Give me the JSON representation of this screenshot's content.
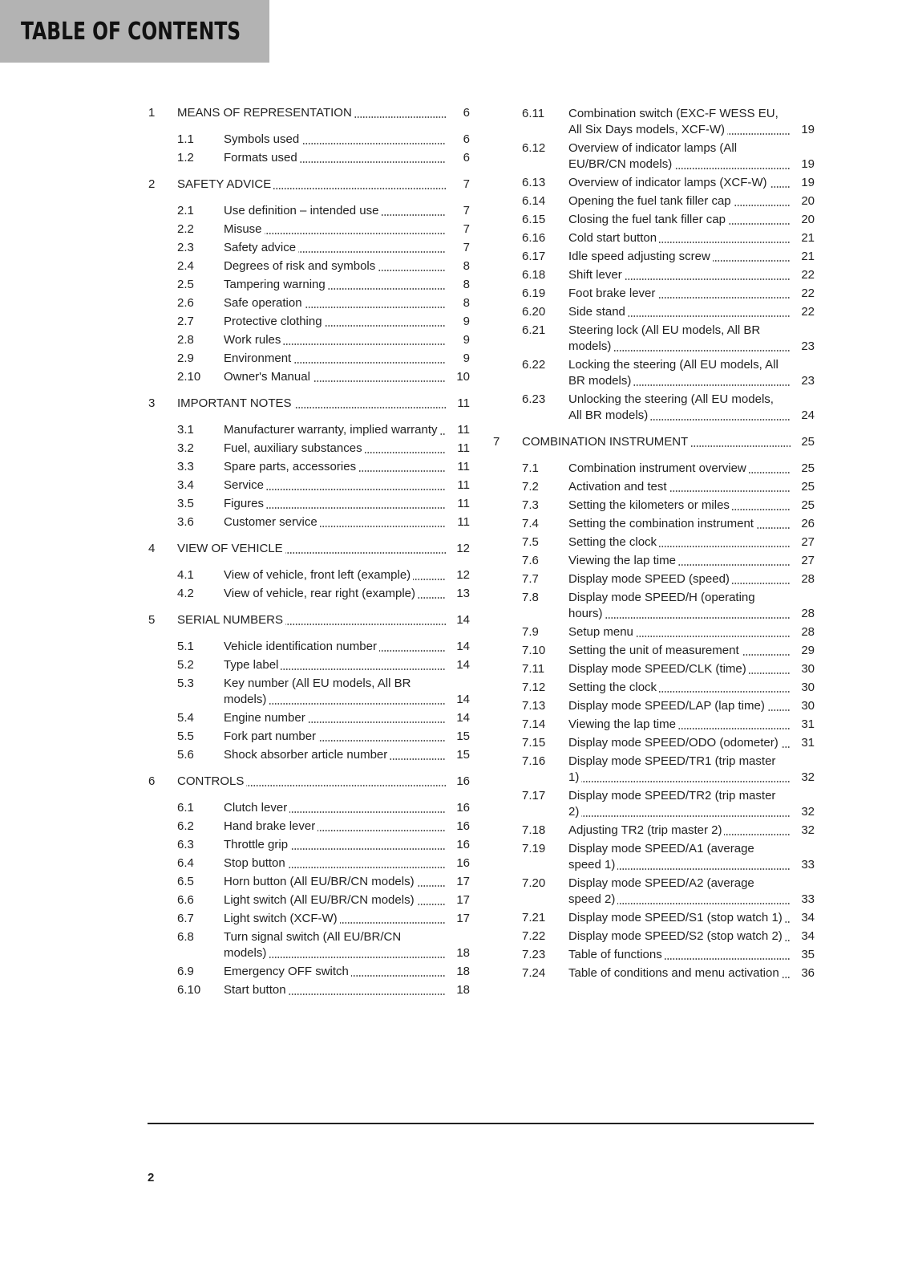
{
  "header": {
    "title": "TABLE OF CONTENTS"
  },
  "columns": [
    {
      "sections": [],
      "chapters": [
        {
          "number": "1",
          "title": "MEANS OF REPRESENTATION",
          "page": 6,
          "sections": [
            {
              "number": "1.1",
              "title": "Symbols used",
              "page": 6
            },
            {
              "number": "1.2",
              "title": "Formats used",
              "page": 6
            }
          ]
        },
        {
          "number": "2",
          "title": "SAFETY ADVICE",
          "page": 7,
          "sections": [
            {
              "number": "2.1",
              "title": "Use definition – intended use",
              "page": 7
            },
            {
              "number": "2.2",
              "title": "Misuse",
              "page": 7
            },
            {
              "number": "2.3",
              "title": "Safety advice",
              "page": 7
            },
            {
              "number": "2.4",
              "title": "Degrees of risk and symbols",
              "page": 8
            },
            {
              "number": "2.5",
              "title": "Tampering warning",
              "page": 8
            },
            {
              "number": "2.6",
              "title": "Safe operation",
              "page": 8
            },
            {
              "number": "2.7",
              "title": "Protective clothing",
              "page": 9
            },
            {
              "number": "2.8",
              "title": "Work rules",
              "page": 9
            },
            {
              "number": "2.9",
              "title": "Environment",
              "page": 9
            },
            {
              "number": "2.10",
              "title": "Owner's Manual",
              "page": 10
            }
          ]
        },
        {
          "number": "3",
          "title": "IMPORTANT NOTES",
          "page": 11,
          "sections": [
            {
              "number": "3.1",
              "title": "Manufacturer warranty, implied warranty",
              "page": 11
            },
            {
              "number": "3.2",
              "title": "Fuel, auxiliary substances",
              "page": 11
            },
            {
              "number": "3.3",
              "title": "Spare parts, accessories",
              "page": 11
            },
            {
              "number": "3.4",
              "title": "Service",
              "page": 11
            },
            {
              "number": "3.5",
              "title": "Figures",
              "page": 11
            },
            {
              "number": "3.6",
              "title": "Customer service",
              "page": 11
            }
          ]
        },
        {
          "number": "4",
          "title": "VIEW OF VEHICLE",
          "page": 12,
          "sections": [
            {
              "number": "4.1",
              "title": "View of vehicle, front left (example)",
              "page": 12
            },
            {
              "number": "4.2",
              "title": "View of vehicle, rear right (example)",
              "page": 13
            }
          ]
        },
        {
          "number": "5",
          "title": "SERIAL NUMBERS",
          "page": 14,
          "sections": [
            {
              "number": "5.1",
              "title": "Vehicle identification number",
              "page": 14
            },
            {
              "number": "5.2",
              "title": "Type label",
              "page": 14
            },
            {
              "number": "5.3",
              "title": "Key number (All EU models, All BR models)",
              "page": 14
            },
            {
              "number": "5.4",
              "title": "Engine number",
              "page": 14
            },
            {
              "number": "5.5",
              "title": "Fork part number",
              "page": 15
            },
            {
              "number": "5.6",
              "title": "Shock absorber article number",
              "page": 15
            }
          ]
        },
        {
          "number": "6",
          "title": "CONTROLS",
          "page": 16,
          "sections": [
            {
              "number": "6.1",
              "title": "Clutch lever",
              "page": 16
            },
            {
              "number": "6.2",
              "title": "Hand brake lever",
              "page": 16
            },
            {
              "number": "6.3",
              "title": "Throttle grip",
              "page": 16
            },
            {
              "number": "6.4",
              "title": "Stop button",
              "page": 16
            },
            {
              "number": "6.5",
              "title": "Horn button (All EU/BR/CN models)",
              "page": 17
            },
            {
              "number": "6.6",
              "title": "Light switch (All EU/BR/CN models)",
              "page": 17
            },
            {
              "number": "6.7",
              "title": "Light switch (XCF-W)",
              "page": 17
            },
            {
              "number": "6.8",
              "title": "Turn signal switch (All EU/BR/CN models)",
              "page": 18
            },
            {
              "number": "6.9",
              "title": "Emergency OFF switch",
              "page": 18
            },
            {
              "number": "6.10",
              "title": "Start button",
              "page": 18
            }
          ]
        }
      ]
    },
    {
      "sections": [
        {
          "number": "6.11",
          "title": "Combination switch (EXC-F WESS EU, All Six Days models, XCF-W)",
          "page": 19
        },
        {
          "number": "6.12",
          "title": "Overview of indicator lamps (All EU/BR/CN models)",
          "page": 19
        },
        {
          "number": "6.13",
          "title": "Overview of indicator lamps (XCF-W)",
          "page": 19
        },
        {
          "number": "6.14",
          "title": "Opening the fuel tank filler cap",
          "page": 20
        },
        {
          "number": "6.15",
          "title": "Closing the fuel tank filler cap",
          "page": 20
        },
        {
          "number": "6.16",
          "title": "Cold start button",
          "page": 21
        },
        {
          "number": "6.17",
          "title": "Idle speed adjusting screw",
          "page": 21
        },
        {
          "number": "6.18",
          "title": "Shift lever",
          "page": 22
        },
        {
          "number": "6.19",
          "title": "Foot brake lever",
          "page": 22
        },
        {
          "number": "6.20",
          "title": "Side stand",
          "page": 22
        },
        {
          "number": "6.21",
          "title": "Steering lock (All EU models, All BR models)",
          "page": 23
        },
        {
          "number": "6.22",
          "title": "Locking the steering (All EU models, All BR models)",
          "page": 23
        },
        {
          "number": "6.23",
          "title": "Unlocking the steering (All EU models, All BR models)",
          "page": 24
        }
      ],
      "chapters": [
        {
          "number": "7",
          "title": "COMBINATION INSTRUMENT",
          "page": 25,
          "sections": [
            {
              "number": "7.1",
              "title": "Combination instrument overview",
              "page": 25
            },
            {
              "number": "7.2",
              "title": "Activation and test",
              "page": 25
            },
            {
              "number": "7.3",
              "title": "Setting the kilometers or miles",
              "page": 25
            },
            {
              "number": "7.4",
              "title": "Setting the combination instrument",
              "page": 26
            },
            {
              "number": "7.5",
              "title": "Setting the clock",
              "page": 27
            },
            {
              "number": "7.6",
              "title": "Viewing the lap time",
              "page": 27
            },
            {
              "number": "7.7",
              "title": "Display mode SPEED (speed)",
              "page": 28
            },
            {
              "number": "7.8",
              "title": "Display mode SPEED/H (operating hours)",
              "page": 28
            },
            {
              "number": "7.9",
              "title": "Setup menu",
              "page": 28
            },
            {
              "number": "7.10",
              "title": "Setting the unit of measurement",
              "page": 29
            },
            {
              "number": "7.11",
              "title": "Display mode SPEED/CLK (time)",
              "page": 30
            },
            {
              "number": "7.12",
              "title": "Setting the clock",
              "page": 30
            },
            {
              "number": "7.13",
              "title": "Display mode SPEED/LAP (lap time)",
              "page": 30
            },
            {
              "number": "7.14",
              "title": "Viewing the lap time",
              "page": 31
            },
            {
              "number": "7.15",
              "title": "Display mode SPEED/ODO (odometer)",
              "page": 31
            },
            {
              "number": "7.16",
              "title": "Display mode SPEED/TR1 (trip master 1)",
              "page": 32
            },
            {
              "number": "7.17",
              "title": "Display mode SPEED/TR2 (trip master 2)",
              "page": 32
            },
            {
              "number": "7.18",
              "title": "Adjusting TR2 (trip master 2)",
              "page": 32
            },
            {
              "number": "7.19",
              "title": "Display mode SPEED/A1 (average speed 1)",
              "page": 33
            },
            {
              "number": "7.20",
              "title": "Display mode SPEED/A2 (average speed 2)",
              "page": 33
            },
            {
              "number": "7.21",
              "title": "Display mode SPEED/S1 (stop watch 1)",
              "page": 34
            },
            {
              "number": "7.22",
              "title": "Display mode SPEED/S2 (stop watch 2)",
              "page": 34
            },
            {
              "number": "7.23",
              "title": "Table of functions",
              "page": 35
            },
            {
              "number": "7.24",
              "title": "Table of conditions and menu activation",
              "page": 36
            }
          ]
        }
      ]
    }
  ],
  "footer": {
    "page_number": "2"
  }
}
